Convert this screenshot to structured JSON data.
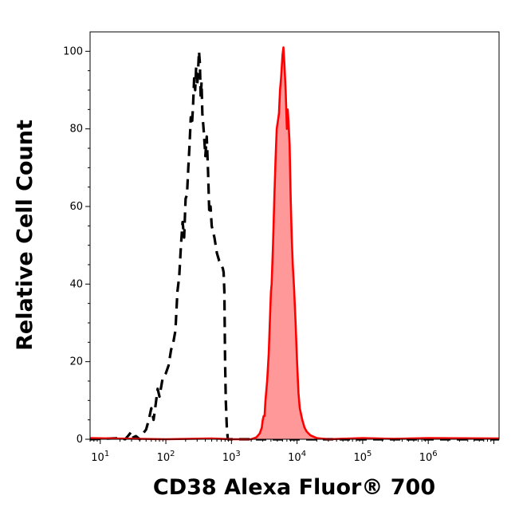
{
  "chart_data": {
    "type": "area",
    "title": "",
    "xlabel": "CD38 Alexa Fluor® 700",
    "ylabel": "Relative Cell Count",
    "x_scale": "log",
    "xlim": [
      7,
      12000000
    ],
    "ylim": [
      0,
      105
    ],
    "x_ticks": [
      {
        "value": 10,
        "base": "10",
        "exp": "1"
      },
      {
        "value": 100,
        "base": "10",
        "exp": "2"
      },
      {
        "value": 1000,
        "base": "10",
        "exp": "3"
      },
      {
        "value": 10000,
        "base": "10",
        "exp": "4"
      },
      {
        "value": 100000,
        "base": "10",
        "exp": "5"
      },
      {
        "value": 1000000,
        "base": "10",
        "exp": "6"
      }
    ],
    "y_ticks": [
      0,
      20,
      40,
      60,
      80,
      100
    ],
    "grid": false,
    "colors": {
      "control": "#000000",
      "stained_line": "#ff0000",
      "stained_fill": "#ff9999"
    },
    "series": [
      {
        "style": "dashed",
        "color": "#000000",
        "fill": false,
        "points": [
          [
            7,
            0
          ],
          [
            20,
            0.3
          ],
          [
            24,
            0
          ],
          [
            27,
            1
          ],
          [
            30,
            2
          ],
          [
            32,
            0.5
          ],
          [
            35,
            0.8
          ],
          [
            40,
            0
          ],
          [
            45,
            1.5
          ],
          [
            50,
            2.5
          ],
          [
            55,
            5
          ],
          [
            60,
            8
          ],
          [
            65,
            5
          ],
          [
            70,
            9
          ],
          [
            75,
            13
          ],
          [
            80,
            11
          ],
          [
            90,
            16
          ],
          [
            100,
            17
          ],
          [
            110,
            19
          ],
          [
            120,
            23
          ],
          [
            130,
            25
          ],
          [
            140,
            28
          ],
          [
            150,
            38
          ],
          [
            160,
            42
          ],
          [
            170,
            50
          ],
          [
            180,
            56
          ],
          [
            190,
            52
          ],
          [
            200,
            62
          ],
          [
            210,
            63
          ],
          [
            220,
            70
          ],
          [
            230,
            76
          ],
          [
            240,
            83
          ],
          [
            250,
            81
          ],
          [
            260,
            86
          ],
          [
            270,
            93
          ],
          [
            280,
            90
          ],
          [
            290,
            96
          ],
          [
            300,
            91
          ],
          [
            310,
            95
          ],
          [
            320,
            100
          ],
          [
            330,
            97
          ],
          [
            340,
            88
          ],
          [
            350,
            92
          ],
          [
            360,
            84
          ],
          [
            380,
            79
          ],
          [
            400,
            73
          ],
          [
            420,
            78
          ],
          [
            440,
            69
          ],
          [
            460,
            58
          ],
          [
            480,
            60
          ],
          [
            500,
            55
          ],
          [
            550,
            52
          ],
          [
            600,
            48
          ],
          [
            650,
            46
          ],
          [
            700,
            45
          ],
          [
            740,
            44
          ],
          [
            760,
            43
          ],
          [
            780,
            38
          ],
          [
            800,
            20
          ],
          [
            820,
            10
          ],
          [
            850,
            3
          ],
          [
            880,
            0
          ],
          [
            950,
            0
          ],
          [
            1200,
            0
          ],
          [
            3000,
            0
          ],
          [
            12000000,
            0
          ]
        ]
      },
      {
        "style": "solid",
        "color": "#ff0000",
        "fill": true,
        "points": [
          [
            7,
            0.3
          ],
          [
            100,
            0
          ],
          [
            500,
            0.2
          ],
          [
            1000,
            0
          ],
          [
            2000,
            0
          ],
          [
            2400,
            0.5
          ],
          [
            2700,
            1.5
          ],
          [
            2900,
            3
          ],
          [
            3000,
            5
          ],
          [
            3100,
            6
          ],
          [
            3200,
            6
          ],
          [
            3300,
            10
          ],
          [
            3500,
            15
          ],
          [
            3700,
            22
          ],
          [
            3900,
            33
          ],
          [
            4000,
            38
          ],
          [
            4100,
            40
          ],
          [
            4300,
            50
          ],
          [
            4500,
            62
          ],
          [
            4700,
            72
          ],
          [
            4900,
            80
          ],
          [
            5100,
            82
          ],
          [
            5300,
            84
          ],
          [
            5500,
            90
          ],
          [
            5700,
            93
          ],
          [
            6000,
            99
          ],
          [
            6200,
            101
          ],
          [
            6400,
            97
          ],
          [
            6700,
            90
          ],
          [
            7000,
            80
          ],
          [
            7200,
            85
          ],
          [
            7400,
            82
          ],
          [
            7700,
            76
          ],
          [
            8000,
            62
          ],
          [
            8300,
            52
          ],
          [
            8600,
            45
          ],
          [
            9000,
            39
          ],
          [
            9500,
            30
          ],
          [
            10000,
            20
          ],
          [
            10500,
            12
          ],
          [
            11000,
            8
          ],
          [
            12000,
            5
          ],
          [
            13000,
            3
          ],
          [
            14000,
            2
          ],
          [
            16000,
            1
          ],
          [
            20000,
            0.3
          ],
          [
            30000,
            0
          ],
          [
            100000,
            0.3
          ],
          [
            300000,
            0.1
          ],
          [
            1000000,
            0.3
          ],
          [
            12000000,
            0.2
          ]
        ]
      }
    ]
  }
}
